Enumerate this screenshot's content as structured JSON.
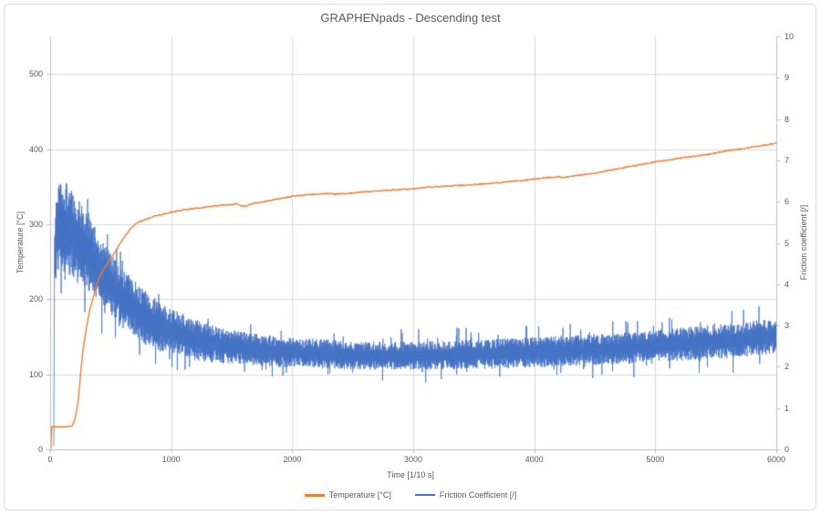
{
  "title": "GRAPHENpads - Descending test",
  "colors": {
    "temperature": "#ED7D31",
    "friction": "#4472C4",
    "gridline": "#D9D9D9",
    "axis_line": "#BFBFBF",
    "text": "#595959",
    "frame_border": "#DCDCDC",
    "background": "#FFFFFF"
  },
  "chart_data": {
    "type": "line",
    "title": "GRAPHENpads - Descending test",
    "xlabel": "Time [1/10 s]",
    "ylabel_left": "Temperature [°C]",
    "ylabel_right": "Friction coefficient [/]",
    "x_range": [
      0,
      6000
    ],
    "y_left_range": [
      0,
      550
    ],
    "y_right_range": [
      0,
      10
    ],
    "x_ticks": [
      0,
      1000,
      2000,
      3000,
      4000,
      5000,
      6000
    ],
    "y_left_ticks": [
      0,
      100,
      200,
      300,
      400,
      500
    ],
    "y_right_ticks": [
      0,
      1,
      2,
      3,
      4,
      5,
      6,
      7,
      8,
      9,
      10
    ],
    "grid": {
      "horizontal_major_left_axis": 100,
      "vertical_major": 1000,
      "visible": true
    },
    "legend": {
      "position": "bottom",
      "entries": [
        {
          "label": "Temperature [°C]",
          "color": "#ED7D31"
        },
        {
          "label": "Friction Coefficient [/]",
          "color": "#4472C4"
        }
      ]
    },
    "series": [
      {
        "name": "Temperature [°C]",
        "axis": "left",
        "style": "smooth",
        "color": "#ED7D31",
        "points": [
          [
            0,
            0
          ],
          [
            8,
            0
          ],
          [
            10,
            30
          ],
          [
            60,
            30
          ],
          [
            120,
            30
          ],
          [
            180,
            31
          ],
          [
            205,
            40
          ],
          [
            230,
            62
          ],
          [
            251,
            100
          ],
          [
            270,
            130
          ],
          [
            290,
            152
          ],
          [
            310,
            172
          ],
          [
            330,
            188
          ],
          [
            352,
            200
          ],
          [
            375,
            214
          ],
          [
            400,
            226
          ],
          [
            430,
            237
          ],
          [
            460,
            245
          ],
          [
            490,
            251
          ],
          [
            520,
            259
          ],
          [
            560,
            270
          ],
          [
            600,
            280
          ],
          [
            650,
            291
          ],
          [
            703,
            300
          ],
          [
            750,
            304
          ],
          [
            800,
            307
          ],
          [
            850,
            310
          ],
          [
            900,
            312
          ],
          [
            950,
            314
          ],
          [
            1000,
            316
          ],
          [
            1100,
            319
          ],
          [
            1200,
            321
          ],
          [
            1300,
            323
          ],
          [
            1400,
            325
          ],
          [
            1500,
            326
          ],
          [
            1550,
            327
          ],
          [
            1580,
            324
          ],
          [
            1620,
            324
          ],
          [
            1660,
            327
          ],
          [
            1700,
            328
          ],
          [
            1800,
            331
          ],
          [
            1900,
            334
          ],
          [
            2000,
            337
          ],
          [
            2100,
            339
          ],
          [
            2200,
            340
          ],
          [
            2300,
            341
          ],
          [
            2360,
            340
          ],
          [
            2450,
            341
          ],
          [
            2600,
            343
          ],
          [
            2800,
            345
          ],
          [
            3000,
            347
          ],
          [
            3100,
            349
          ],
          [
            3200,
            350
          ],
          [
            3300,
            351
          ],
          [
            3450,
            352
          ],
          [
            3600,
            354
          ],
          [
            3700,
            355
          ],
          [
            3800,
            357
          ],
          [
            3900,
            358
          ],
          [
            4000,
            360
          ],
          [
            4100,
            362
          ],
          [
            4200,
            363
          ],
          [
            4250,
            362
          ],
          [
            4350,
            365
          ],
          [
            4500,
            368
          ],
          [
            4600,
            371
          ],
          [
            4700,
            374
          ],
          [
            4800,
            377
          ],
          [
            4900,
            380
          ],
          [
            5000,
            383
          ],
          [
            5100,
            385
          ],
          [
            5200,
            388
          ],
          [
            5300,
            390
          ],
          [
            5400,
            392
          ],
          [
            5500,
            395
          ],
          [
            5600,
            398
          ],
          [
            5700,
            400
          ],
          [
            5800,
            403
          ],
          [
            5900,
            405
          ],
          [
            6000,
            408
          ]
        ]
      },
      {
        "name": "Friction Coefficient [/]",
        "axis": "right",
        "style": "noisy",
        "color": "#4472C4",
        "start_point": [
          30,
          0.08
        ],
        "envelope_mean_amplitude": [
          [
            35,
            4.8,
            1.0
          ],
          [
            60,
            5.3,
            1.4
          ],
          [
            100,
            5.45,
            1.5
          ],
          [
            150,
            5.35,
            1.45
          ],
          [
            200,
            5.15,
            1.35
          ],
          [
            300,
            4.8,
            1.15
          ],
          [
            400,
            4.4,
            1.0
          ],
          [
            500,
            4.0,
            0.95
          ],
          [
            600,
            3.65,
            0.9
          ],
          [
            700,
            3.4,
            0.85
          ],
          [
            800,
            3.15,
            0.8
          ],
          [
            900,
            2.98,
            0.75
          ],
          [
            1000,
            2.85,
            0.7
          ],
          [
            1200,
            2.65,
            0.62
          ],
          [
            1400,
            2.52,
            0.55
          ],
          [
            1600,
            2.44,
            0.5
          ],
          [
            1800,
            2.38,
            0.48
          ],
          [
            2000,
            2.35,
            0.46
          ],
          [
            2400,
            2.29,
            0.44
          ],
          [
            2800,
            2.26,
            0.43
          ],
          [
            3200,
            2.28,
            0.44
          ],
          [
            3600,
            2.31,
            0.45
          ],
          [
            4000,
            2.35,
            0.46
          ],
          [
            4400,
            2.4,
            0.47
          ],
          [
            4800,
            2.46,
            0.48
          ],
          [
            5200,
            2.55,
            0.5
          ],
          [
            5600,
            2.63,
            0.52
          ],
          [
            6000,
            2.75,
            0.55
          ]
        ],
        "noise": {
          "sample_step": 2,
          "base_gain": 0.8,
          "spike_probability": 0.05,
          "spike_gain": 1.8,
          "max_value": 7.3
        }
      }
    ]
  }
}
